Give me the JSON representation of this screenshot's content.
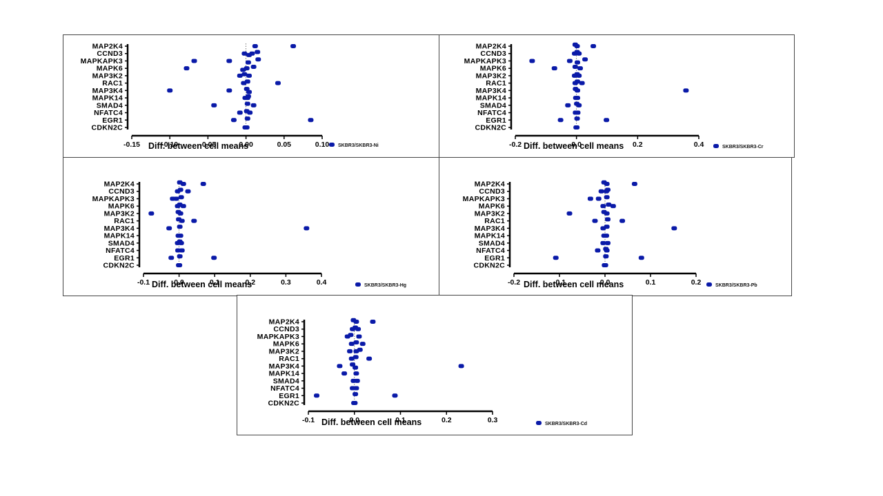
{
  "style": {
    "point_color": "#0a1aa8",
    "axis_color": "#000000"
  },
  "chart_data": [
    {
      "type": "scatter",
      "legend": "SKBR3/SKBR3-Ni",
      "xlabel": "Diff. between cell means",
      "categories": [
        "MAP2K4",
        "CCND3",
        "MAPKAPK3",
        "MAPK6",
        "MAP3K2",
        "RAC1",
        "MAP3K4",
        "MAPK14",
        "SMAD4",
        "NFATC4",
        "EGR1",
        "CDKN2C"
      ],
      "xlim": [
        -0.15,
        0.1
      ],
      "xticks": [
        "-0.15",
        "-0.10",
        "-0.05",
        "0.00",
        "0.05",
        "0.10"
      ],
      "points": [
        {
          "gene": "MAP2K4",
          "values": [
            0.012,
            0.062
          ]
        },
        {
          "gene": "CCND3",
          "values": [
            -0.002,
            0.008,
            0.015,
            0.004
          ]
        },
        {
          "gene": "MAPKAPK3",
          "values": [
            -0.068,
            -0.022,
            0.016,
            0.003
          ]
        },
        {
          "gene": "MAPK6",
          "values": [
            -0.078,
            0.001,
            0.01,
            -0.004
          ]
        },
        {
          "gene": "MAP3K2",
          "values": [
            -0.008,
            0.004,
            -0.002
          ]
        },
        {
          "gene": "RAC1",
          "values": [
            0.042,
            -0.003,
            0.002
          ]
        },
        {
          "gene": "MAP3K4",
          "values": [
            -0.1,
            -0.022,
            0.001,
            0.004
          ]
        },
        {
          "gene": "MAPK14",
          "values": [
            0.002,
            -0.001,
            0.003
          ]
        },
        {
          "gene": "SMAD4",
          "values": [
            -0.042,
            0.01,
            0.002
          ]
        },
        {
          "gene": "NFATC4",
          "values": [
            0.005,
            -0.008,
            0.001
          ]
        },
        {
          "gene": "EGR1",
          "values": [
            0.085,
            -0.016,
            0.002
          ]
        },
        {
          "gene": "CDKN2C",
          "values": [
            -0.001,
            0.001
          ]
        }
      ]
    },
    {
      "type": "scatter",
      "legend": "SKBR3/SKBR3-Cr",
      "xlabel": "Diff. between cell means",
      "categories": [
        "MAP2K4",
        "CCND3",
        "MAPKAPK3",
        "MAPK6",
        "MAP3K2",
        "RAC1",
        "MAP3K4",
        "MAPK14",
        "SMAD4",
        "NFATC4",
        "EGR1",
        "CDKN2C"
      ],
      "xlim": [
        -0.2,
        0.4
      ],
      "xticks": [
        "-0.2",
        "0.0",
        "0.2",
        "0.4"
      ],
      "points": [
        {
          "gene": "MAP2K4",
          "values": [
            0.055,
            0.002,
            -0.004
          ]
        },
        {
          "gene": "CCND3",
          "values": [
            0.008,
            -0.006,
            0.002
          ]
        },
        {
          "gene": "MAPKAPK3",
          "values": [
            -0.145,
            -0.022,
            0.028,
            0.003
          ]
        },
        {
          "gene": "MAPK6",
          "values": [
            -0.072,
            0.012,
            -0.004
          ]
        },
        {
          "gene": "MAP3K2",
          "values": [
            0.008,
            -0.006,
            0.002
          ]
        },
        {
          "gene": "RAC1",
          "values": [
            0.018,
            -0.004,
            0.003
          ]
        },
        {
          "gene": "MAP3K4",
          "values": [
            0.358,
            0.003,
            -0.003
          ]
        },
        {
          "gene": "MAPK14",
          "values": [
            0.003,
            -0.002
          ]
        },
        {
          "gene": "SMAD4",
          "values": [
            -0.028,
            0.008,
            0.001
          ]
        },
        {
          "gene": "NFATC4",
          "values": [
            0.004,
            -0.003
          ]
        },
        {
          "gene": "EGR1",
          "values": [
            -0.052,
            0.098,
            0.002
          ]
        },
        {
          "gene": "CDKN2C",
          "values": [
            -0.001,
            0.001
          ]
        }
      ]
    },
    {
      "type": "scatter",
      "legend": "SKBR3/SKBR3-Hg",
      "xlabel": "Diff. between cell means",
      "categories": [
        "MAP2K4",
        "CCND3",
        "MAPKAPK3",
        "MAPK6",
        "MAP3K2",
        "RAC1",
        "MAP3K4",
        "MAPK14",
        "SMAD4",
        "NFATC4",
        "EGR1",
        "CDKN2C"
      ],
      "xlim": [
        -0.1,
        0.4
      ],
      "xticks": [
        "-0.1",
        "0.0",
        "0.1",
        "0.2",
        "0.3",
        "0.4"
      ],
      "points": [
        {
          "gene": "MAP2K4",
          "values": [
            0.012,
            0.068,
            0.002
          ]
        },
        {
          "gene": "CCND3",
          "values": [
            0.025,
            -0.004,
            0.004
          ]
        },
        {
          "gene": "MAPKAPK3",
          "values": [
            -0.018,
            -0.008,
            0.006
          ]
        },
        {
          "gene": "MAPK6",
          "values": [
            0.012,
            -0.004,
            0.002
          ]
        },
        {
          "gene": "MAP3K2",
          "values": [
            -0.078,
            0.004,
            -0.002
          ]
        },
        {
          "gene": "RAC1",
          "values": [
            0.042,
            0.008,
            -0.001
          ]
        },
        {
          "gene": "MAP3K4",
          "values": [
            -0.028,
            0.358,
            0.002
          ]
        },
        {
          "gene": "MAPK14",
          "values": [
            0.004,
            -0.002
          ]
        },
        {
          "gene": "SMAD4",
          "values": [
            0.006,
            -0.004,
            0.002
          ]
        },
        {
          "gene": "NFATC4",
          "values": [
            0.008,
            -0.003
          ]
        },
        {
          "gene": "EGR1",
          "values": [
            0.098,
            -0.022,
            0.002
          ]
        },
        {
          "gene": "CDKN2C",
          "values": [
            -0.001,
            0.001
          ]
        }
      ]
    },
    {
      "type": "scatter",
      "legend": "SKBR3/SKBR3-Pb",
      "xlabel": "Diff. between cell means",
      "categories": [
        "MAP2K4",
        "CCND3",
        "MAPKAPK3",
        "MAPK6",
        "MAP3K2",
        "RAC1",
        "MAP3K4",
        "MAPK14",
        "SMAD4",
        "NFATC4",
        "EGR1",
        "CDKN2C"
      ],
      "xlim": [
        -0.2,
        0.2
      ],
      "xticks": [
        "-0.2",
        "-0.1",
        "0.0",
        "0.1",
        "0.2"
      ],
      "points": [
        {
          "gene": "MAP2K4",
          "values": [
            0.004,
            0.065,
            -0.002
          ]
        },
        {
          "gene": "CCND3",
          "values": [
            -0.008,
            0.003,
            0.006
          ]
        },
        {
          "gene": "MAPKAPK3",
          "values": [
            -0.032,
            -0.014,
            0.004
          ]
        },
        {
          "gene": "MAPK6",
          "values": [
            0.018,
            -0.004,
            0.008
          ]
        },
        {
          "gene": "MAP3K2",
          "values": [
            -0.078,
            0.004,
            -0.002
          ]
        },
        {
          "gene": "RAC1",
          "values": [
            0.038,
            -0.022,
            0.006
          ]
        },
        {
          "gene": "MAP3K4",
          "values": [
            0.152,
            -0.004,
            0.004
          ]
        },
        {
          "gene": "MAPK14",
          "values": [
            0.003,
            -0.002
          ]
        },
        {
          "gene": "SMAD4",
          "values": [
            0.006,
            -0.004
          ]
        },
        {
          "gene": "NFATC4",
          "values": [
            -0.016,
            0.004,
            0.002
          ]
        },
        {
          "gene": "EGR1",
          "values": [
            -0.108,
            0.08,
            0.002
          ]
        },
        {
          "gene": "CDKN2C",
          "values": [
            -0.001,
            0.001
          ]
        }
      ]
    },
    {
      "type": "scatter",
      "legend": "SKBR3/SKBR3-Cd",
      "xlabel": "Diff. between cell means",
      "categories": [
        "MAP2K4",
        "CCND3",
        "MAPKAPK3",
        "MAPK6",
        "MAP3K2",
        "RAC1",
        "MAP3K4",
        "MAPK14",
        "SMAD4",
        "NFATC4",
        "EGR1",
        "CDKN2C"
      ],
      "xlim": [
        -0.1,
        0.3
      ],
      "xticks": [
        "-0.1",
        "0.0",
        "0.1",
        "0.2",
        "0.3"
      ],
      "points": [
        {
          "gene": "MAP2K4",
          "values": [
            0.004,
            0.04,
            -0.002
          ]
        },
        {
          "gene": "CCND3",
          "values": [
            0.008,
            -0.004,
            0.002
          ]
        },
        {
          "gene": "MAPKAPK3",
          "values": [
            -0.015,
            0.01,
            -0.008
          ]
        },
        {
          "gene": "MAPK6",
          "values": [
            0.018,
            -0.006,
            0.004
          ]
        },
        {
          "gene": "MAP3K2",
          "values": [
            -0.01,
            0.004,
            0.012
          ]
        },
        {
          "gene": "RAC1",
          "values": [
            0.032,
            -0.006,
            0.003
          ]
        },
        {
          "gene": "MAP3K4",
          "values": [
            -0.032,
            0.232,
            -0.004,
            0.002
          ]
        },
        {
          "gene": "MAPK14",
          "values": [
            -0.022,
            0.004
          ]
        },
        {
          "gene": "SMAD4",
          "values": [
            0.006,
            -0.002
          ]
        },
        {
          "gene": "NFATC4",
          "values": [
            0.004,
            -0.004
          ]
        },
        {
          "gene": "EGR1",
          "values": [
            -0.082,
            0.088,
            0.002
          ]
        },
        {
          "gene": "CDKN2C",
          "values": [
            -0.001,
            0.001
          ]
        }
      ]
    }
  ]
}
